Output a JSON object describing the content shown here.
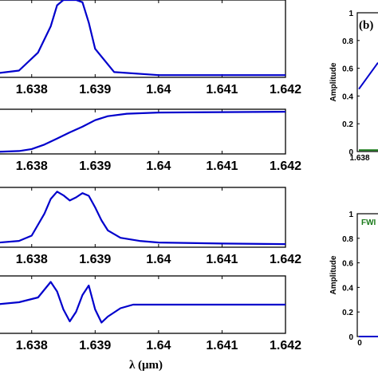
{
  "chart_data": [
    {
      "type": "line",
      "xticks": [
        "1.638",
        "1.639",
        "1.64",
        "1.641",
        "1.642"
      ],
      "xlim": [
        1.6374,
        1.642
      ],
      "color": "#0000cc",
      "series": [
        {
          "x": [
            1.6374,
            1.6378,
            1.6381,
            1.6383,
            1.6384,
            1.6385,
            1.6386,
            1.6387,
            1.6388,
            1.6389,
            1.639,
            1.6393,
            1.64,
            1.642
          ],
          "y": [
            0.02,
            0.06,
            0.3,
            0.65,
            0.93,
            1.0,
            1.0,
            1.0,
            0.97,
            0.7,
            0.35,
            0.04,
            0.0,
            0.0
          ]
        }
      ]
    },
    {
      "type": "line",
      "xticks": [
        "1.638",
        "1.639",
        "1.64",
        "1.641",
        "1.642"
      ],
      "xlim": [
        1.6374,
        1.642
      ],
      "color": "#0000cc",
      "series": [
        {
          "x": [
            1.6374,
            1.6378,
            1.638,
            1.6382,
            1.6384,
            1.6386,
            1.6388,
            1.639,
            1.6392,
            1.6395,
            1.64,
            1.641,
            1.642
          ],
          "y": [
            0.0,
            0.02,
            0.07,
            0.18,
            0.33,
            0.48,
            0.62,
            0.78,
            0.88,
            0.94,
            0.97,
            0.98,
            0.99
          ]
        }
      ]
    },
    {
      "type": "line",
      "xticks": [
        "1.638",
        "1.639",
        "1.64",
        "1.641",
        "1.642"
      ],
      "xlim": [
        1.6374,
        1.642
      ],
      "color": "#0000cc",
      "series": [
        {
          "x": [
            1.6374,
            1.6378,
            1.638,
            1.6382,
            1.6383,
            1.6384,
            1.6385,
            1.6386,
            1.6387,
            1.6388,
            1.6389,
            1.639,
            1.6391,
            1.6392,
            1.6394,
            1.6397,
            1.64,
            1.641,
            1.642
          ],
          "y": [
            0.02,
            0.06,
            0.16,
            0.58,
            0.86,
            1.0,
            0.93,
            0.83,
            0.89,
            0.97,
            0.92,
            0.7,
            0.45,
            0.26,
            0.12,
            0.06,
            0.03,
            0.01,
            0.0
          ]
        }
      ]
    },
    {
      "type": "line",
      "xticks": [
        "1.638",
        "1.639",
        "1.64",
        "1.641",
        "1.642"
      ],
      "xlim": [
        1.6374,
        1.642
      ],
      "color": "#0000cc",
      "series": [
        {
          "x": [
            1.6374,
            1.6378,
            1.6381,
            1.6383,
            1.6384,
            1.6385,
            1.6386,
            1.6387,
            1.6388,
            1.6389,
            1.639,
            1.6391,
            1.6392,
            1.6394,
            1.6396,
            1.642
          ],
          "y": [
            0.0,
            0.1,
            0.3,
            0.95,
            0.55,
            -0.2,
            -0.7,
            -0.3,
            0.4,
            0.8,
            -0.2,
            -0.75,
            -0.5,
            -0.15,
            0.0,
            0.0
          ]
        }
      ],
      "xlabel": "λ (μm)"
    },
    {
      "type": "line",
      "title": "(b)",
      "ylabel": "Amplitude",
      "yticks": [
        "0",
        "0.2",
        "0.4",
        "0.6",
        "0.8",
        "1"
      ],
      "xticks": [
        "1.638"
      ],
      "ylim": [
        0,
        1
      ],
      "series": [
        {
          "color": "#0000cc",
          "x": [
            0,
            1
          ],
          "y": [
            0.45,
            0.64
          ]
        },
        {
          "color": "#1a7a1a",
          "x": [
            0,
            1
          ],
          "y": [
            0.01,
            0.01
          ]
        }
      ]
    },
    {
      "type": "line",
      "ylabel": "Amplitude",
      "annotation": "FWI",
      "yticks": [
        "0",
        "0.2",
        "0.4",
        "0.6",
        "0.8",
        "1"
      ],
      "xticks": [
        "0"
      ],
      "ylim": [
        0,
        1
      ],
      "series": [
        {
          "color": "#0000cc",
          "x": [
            0,
            1
          ],
          "y": [
            0.0,
            0.0
          ]
        }
      ]
    }
  ]
}
